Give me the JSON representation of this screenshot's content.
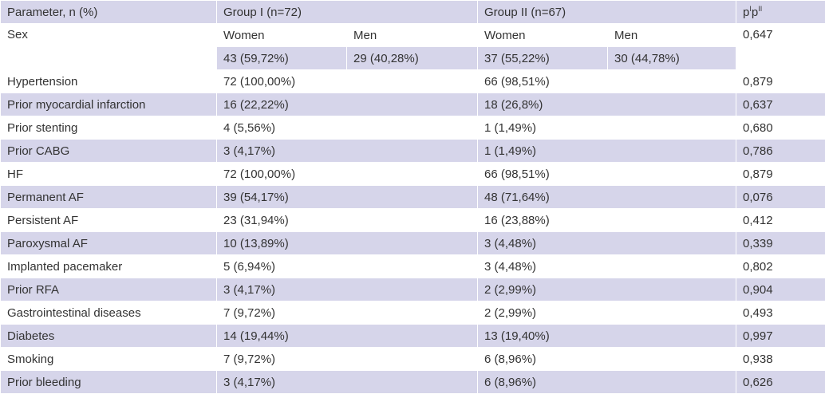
{
  "header": {
    "parameter": "Parameter, n (%)",
    "group1": "Group I (n=72)",
    "group2": "Group II (n=67)",
    "p_base1": "p",
    "p_sup1": "I",
    "p_base2": "p",
    "p_sup2": "II"
  },
  "sex": {
    "label": "Sex",
    "g1_women_label": "Women",
    "g1_men_label": "Men",
    "g2_women_label": "Women",
    "g2_men_label": "Men",
    "g1_women": "43 (59,72%)",
    "g1_men": "29 (40,28%)",
    "g2_women": "37 (55,22%)",
    "g2_men": "30 (44,78%)",
    "p": "0,647"
  },
  "rows": [
    {
      "parameter": "Hypertension",
      "group1": "72 (100,00%)",
      "group2": "66 (98,51%)",
      "p": "0,879"
    },
    {
      "parameter": "Prior myocardial infarction",
      "group1": "16 (22,22%)",
      "group2": "18 (26,8%)",
      "p": "0,637"
    },
    {
      "parameter": "Prior stenting",
      "group1": "4 (5,56%)",
      "group2": "1 (1,49%)",
      "p": "0,680"
    },
    {
      "parameter": "Prior CABG",
      "group1": "3 (4,17%)",
      "group2": "1 (1,49%)",
      "p": "0,786"
    },
    {
      "parameter": "HF",
      "group1": "72 (100,00%)",
      "group2": "66 (98,51%)",
      "p": "0,879"
    },
    {
      "parameter": "Permanent AF",
      "group1": "39 (54,17%)",
      "group2": "48 (71,64%)",
      "p": "0,076"
    },
    {
      "parameter": "Persistent AF",
      "group1": "23 (31,94%)",
      "group2": "16 (23,88%)",
      "p": "0,412"
    },
    {
      "parameter": "Paroxysmal AF",
      "group1": "10 (13,89%)",
      "group2": "3 (4,48%)",
      "p": "0,339"
    },
    {
      "parameter": "Implanted pacemaker",
      "group1": "5 (6,94%)",
      "group2": "3 (4,48%)",
      "p": "0,802"
    },
    {
      "parameter": "Prior RFA",
      "group1": "3 (4,17%)",
      "group2": "2 (2,99%)",
      "p": "0,904"
    },
    {
      "parameter": "Gastrointestinal diseases",
      "group1": "7 (9,72%)",
      "group2": "2 (2,99%)",
      "p": "0,493"
    },
    {
      "parameter": "Diabetes",
      "group1": "14 (19,44%)",
      "group2": "13 (19,40%)",
      "p": "0,997"
    },
    {
      "parameter": "Smoking",
      "group1": "7 (9,72%)",
      "group2": "6 (8,96%)",
      "p": "0,938"
    },
    {
      "parameter": "Prior bleeding",
      "group1": "3 (4,17%)",
      "group2": "6 (8,96%)",
      "p": "0,626"
    }
  ],
  "colors": {
    "stripe": "#d6d5ea",
    "text": "#333333"
  }
}
